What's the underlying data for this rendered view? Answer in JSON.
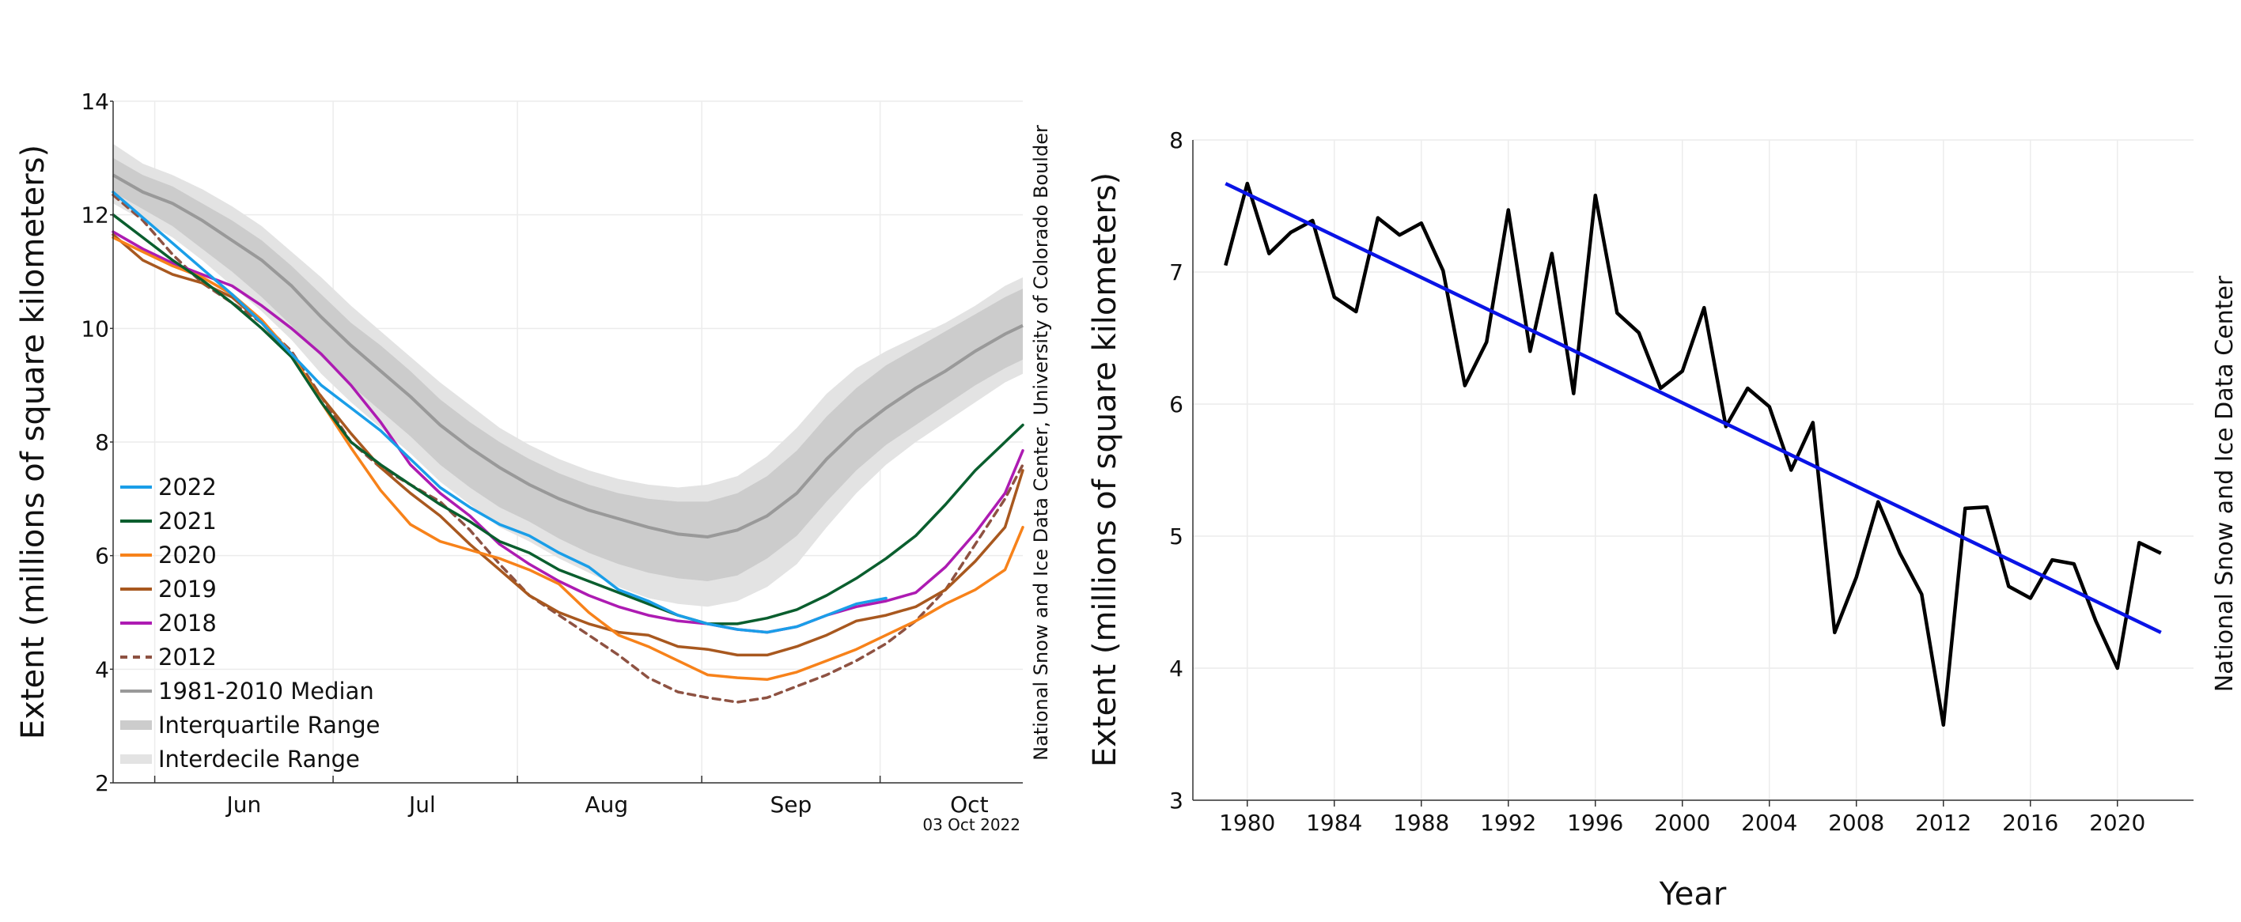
{
  "chart_data": [
    {
      "type": "line",
      "title": "",
      "xlabel": "",
      "ylabel": "Extent (millions of square kilometers)",
      "ylim": [
        2,
        14
      ],
      "yticks": [
        2,
        4,
        6,
        8,
        10,
        12,
        14
      ],
      "x_axis_kind": "day-of-year",
      "xlim_day_of_year": [
        145,
        298
      ],
      "month_boundaries_day": [
        152,
        182,
        213,
        244,
        274
      ],
      "month_labels": [
        "Jun",
        "Jul",
        "Aug",
        "Sep",
        "Oct"
      ],
      "month_label_days": [
        167,
        197,
        228,
        259,
        289
      ],
      "grid": true,
      "legend_placement": "bottom-left",
      "credit": "National Snow and Ice Data Center, University of Colorado Boulder",
      "date_stamp": "03 Oct 2022",
      "x_day_of_year": [
        145,
        150,
        155,
        160,
        165,
        170,
        175,
        180,
        185,
        190,
        195,
        200,
        205,
        210,
        215,
        220,
        225,
        230,
        235,
        240,
        245,
        250,
        255,
        260,
        265,
        270,
        275,
        280,
        285,
        290,
        295,
        298
      ],
      "median": {
        "name": "1981-2010 Median",
        "color": "#999999",
        "values": [
          12.7,
          12.4,
          12.2,
          11.9,
          11.55,
          11.2,
          10.75,
          10.2,
          9.7,
          9.25,
          8.8,
          8.3,
          7.9,
          7.55,
          7.25,
          7.0,
          6.8,
          6.65,
          6.5,
          6.38,
          6.33,
          6.45,
          6.7,
          7.1,
          7.7,
          8.2,
          8.6,
          8.95,
          9.25,
          9.6,
          9.9,
          10.05
        ]
      },
      "interquartile": {
        "name": "Interquartile Range",
        "color": "#cccccc",
        "low": [
          12.4,
          12.1,
          11.8,
          11.4,
          11.0,
          10.55,
          10.05,
          9.5,
          9.0,
          8.55,
          8.1,
          7.6,
          7.2,
          6.85,
          6.6,
          6.3,
          6.05,
          5.85,
          5.7,
          5.6,
          5.55,
          5.65,
          5.95,
          6.35,
          6.95,
          7.5,
          7.95,
          8.3,
          8.65,
          9.0,
          9.3,
          9.45
        ],
        "high": [
          13.0,
          12.7,
          12.5,
          12.2,
          11.9,
          11.55,
          11.1,
          10.6,
          10.1,
          9.7,
          9.25,
          8.75,
          8.35,
          8.0,
          7.7,
          7.45,
          7.25,
          7.1,
          7.0,
          6.95,
          6.95,
          7.1,
          7.4,
          7.85,
          8.45,
          8.95,
          9.35,
          9.65,
          9.95,
          10.25,
          10.55,
          10.7
        ]
      },
      "interdecile": {
        "name": "Interdecile Range",
        "color": "#e3e3e3",
        "low": [
          12.2,
          11.9,
          11.6,
          11.2,
          10.75,
          10.3,
          9.8,
          9.2,
          8.7,
          8.25,
          7.8,
          7.3,
          6.9,
          6.5,
          6.25,
          5.95,
          5.7,
          5.45,
          5.25,
          5.15,
          5.1,
          5.2,
          5.45,
          5.85,
          6.5,
          7.1,
          7.6,
          8.0,
          8.35,
          8.7,
          9.05,
          9.2
        ],
        "high": [
          13.25,
          12.9,
          12.7,
          12.45,
          12.15,
          11.8,
          11.35,
          10.9,
          10.4,
          9.95,
          9.5,
          9.05,
          8.65,
          8.25,
          7.95,
          7.7,
          7.5,
          7.35,
          7.25,
          7.2,
          7.25,
          7.4,
          7.75,
          8.25,
          8.85,
          9.3,
          9.6,
          9.85,
          10.1,
          10.4,
          10.75,
          10.9
        ]
      },
      "series": [
        {
          "name": "2022",
          "color": "#1a9ee8",
          "dashed": false,
          "values": [
            12.4,
            11.95,
            11.5,
            11.05,
            10.6,
            10.1,
            9.55,
            9.0,
            8.6,
            8.2,
            7.7,
            7.2,
            6.85,
            6.55,
            6.35,
            6.05,
            5.8,
            5.4,
            5.2,
            4.95,
            4.8,
            4.7,
            4.65,
            4.75,
            4.95,
            5.15,
            5.25,
            null,
            null,
            null,
            null,
            null
          ]
        },
        {
          "name": "2021",
          "color": "#0a5e2e",
          "dashed": false,
          "values": [
            12.0,
            11.6,
            11.2,
            10.85,
            10.45,
            10.0,
            9.5,
            8.7,
            8.0,
            7.6,
            7.25,
            6.9,
            6.6,
            6.25,
            6.05,
            5.75,
            5.55,
            5.35,
            5.15,
            4.95,
            4.8,
            4.8,
            4.9,
            5.05,
            5.3,
            5.6,
            5.95,
            6.35,
            6.9,
            7.5,
            8.0,
            8.3
          ]
        },
        {
          "name": "2020",
          "color": "#f7821a",
          "dashed": false,
          "values": [
            11.6,
            11.35,
            11.1,
            10.9,
            10.6,
            10.15,
            9.55,
            8.7,
            7.9,
            7.15,
            6.55,
            6.25,
            6.1,
            5.95,
            5.75,
            5.5,
            5.0,
            4.6,
            4.4,
            4.15,
            3.9,
            3.85,
            3.82,
            3.95,
            4.15,
            4.35,
            4.6,
            4.85,
            5.15,
            5.4,
            5.75,
            6.5
          ]
        },
        {
          "name": "2019",
          "color": "#a8581f",
          "dashed": false,
          "values": [
            11.65,
            11.2,
            10.95,
            10.8,
            10.55,
            10.1,
            9.5,
            8.8,
            8.15,
            7.55,
            7.1,
            6.7,
            6.2,
            5.75,
            5.3,
            5.0,
            4.8,
            4.65,
            4.6,
            4.4,
            4.35,
            4.25,
            4.25,
            4.4,
            4.6,
            4.85,
            4.95,
            5.1,
            5.4,
            5.9,
            6.5,
            7.5
          ]
        },
        {
          "name": "2018",
          "color": "#ad1bb2",
          "dashed": false,
          "values": [
            11.7,
            11.4,
            11.15,
            10.95,
            10.75,
            10.4,
            10.0,
            9.55,
            9.0,
            8.35,
            7.6,
            7.1,
            6.7,
            6.2,
            5.85,
            5.55,
            5.3,
            5.1,
            4.95,
            4.85,
            4.8,
            4.7,
            4.65,
            4.75,
            4.95,
            5.1,
            5.2,
            5.35,
            5.8,
            6.4,
            7.1,
            7.85
          ]
        },
        {
          "name": "2012",
          "color": "#8e5242",
          "dashed": true,
          "values": [
            12.35,
            11.9,
            11.3,
            10.8,
            10.45,
            10.1,
            9.6,
            8.8,
            8.0,
            7.55,
            7.25,
            6.95,
            6.45,
            5.85,
            5.3,
            4.95,
            4.6,
            4.25,
            3.85,
            3.6,
            3.5,
            3.42,
            3.5,
            3.7,
            3.9,
            4.15,
            4.45,
            4.85,
            5.4,
            6.2,
            7.0,
            7.6
          ]
        }
      ]
    },
    {
      "type": "line",
      "title": "",
      "xlabel": "Year",
      "ylabel": "Extent (millions of square kilometers)",
      "xlim": [
        1977.5,
        2023.5
      ],
      "ylim": [
        3,
        8
      ],
      "xticks": [
        1980,
        1984,
        1988,
        1992,
        1996,
        2000,
        2004,
        2008,
        2012,
        2016,
        2020
      ],
      "yticks": [
        3,
        4,
        5,
        6,
        7,
        8
      ],
      "grid": true,
      "credit": "National Snow and Ice Data Center",
      "x": [
        1979,
        1980,
        1981,
        1982,
        1983,
        1984,
        1985,
        1986,
        1987,
        1988,
        1989,
        1990,
        1991,
        1992,
        1993,
        1994,
        1995,
        1996,
        1997,
        1998,
        1999,
        2000,
        2001,
        2002,
        2003,
        2004,
        2005,
        2006,
        2007,
        2008,
        2009,
        2010,
        2011,
        2012,
        2013,
        2014,
        2015,
        2016,
        2017,
        2018,
        2019,
        2020,
        2021,
        2022
      ],
      "series": [
        {
          "name": "",
          "color": "#000000",
          "values": [
            7.05,
            7.67,
            7.14,
            7.3,
            7.39,
            6.81,
            6.7,
            7.41,
            7.28,
            7.37,
            7.01,
            6.14,
            6.47,
            7.47,
            6.4,
            7.14,
            6.08,
            7.58,
            6.69,
            6.54,
            6.12,
            6.25,
            6.73,
            5.83,
            6.12,
            5.98,
            5.5,
            5.86,
            4.27,
            4.69,
            5.26,
            4.87,
            4.56,
            3.57,
            5.21,
            5.22,
            4.62,
            4.53,
            4.82,
            4.79,
            4.36,
            4.0,
            4.95,
            4.87
          ]
        },
        {
          "name": "",
          "color": "#0a14e6",
          "trend": true,
          "x": [
            1979,
            2022
          ],
          "values": [
            7.67,
            4.27
          ]
        }
      ]
    }
  ]
}
